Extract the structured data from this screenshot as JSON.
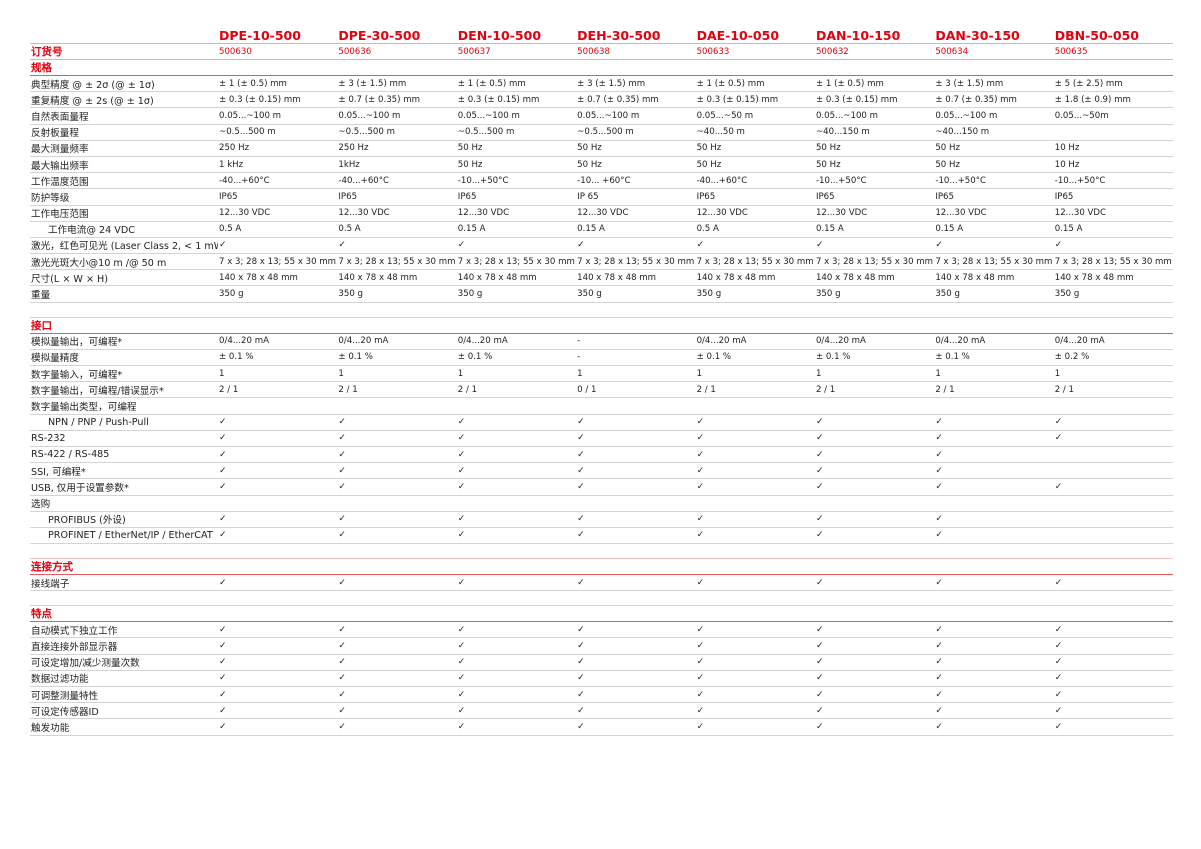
{
  "models": [
    "DPE-10-500",
    "DPE-30-500",
    "DEN-10-500",
    "DEH-30-500",
    "DAE-10-050",
    "DAN-10-150",
    "DAN-30-150",
    "DBN-50-050"
  ],
  "order": {
    "label": "订货号",
    "values": [
      "500630",
      "500636",
      "500637",
      "500638",
      "500633",
      "500632",
      "500634",
      "500635"
    ]
  },
  "accent_color": "#e3000f",
  "sections": [
    {
      "title": "规格",
      "rows": [
        {
          "label": "典型精度 @ ± 2σ (@ ± 1σ)",
          "values": [
            "± 1 (± 0.5) mm",
            "± 3 (± 1.5) mm",
            "± 1 (± 0.5) mm",
            "± 3 (± 1.5) mm",
            "± 1 (± 0.5) mm",
            "± 1 (± 0.5) mm",
            "± 3 (± 1.5) mm",
            "± 5 (± 2.5) mm"
          ]
        },
        {
          "label": "重复精度 @ ± 2s (@ ± 1σ)",
          "values": [
            "± 0.3 (± 0.15) mm",
            "± 0.7 (± 0.35) mm",
            "± 0.3 (± 0.15) mm",
            "± 0.7 (± 0.35) mm",
            "± 0.3 (± 0.15) mm",
            "± 0.3 (± 0.15) mm",
            "± 0.7 (± 0.35) mm",
            "± 1.8 (± 0.9) mm"
          ]
        },
        {
          "label": "自然表面量程",
          "values": [
            "0.05...~100 m",
            "0.05...~100 m",
            "0.05...~100 m",
            "0.05...~100 m",
            "0.05...~50 m",
            "0.05...~100 m",
            "0.05...~100 m",
            "0.05...~50m"
          ]
        },
        {
          "label": "反射板量程",
          "values": [
            " ~0.5...500 m",
            " ~0.5...500 m",
            " ~0.5...500 m",
            " ~0.5...500 m",
            "~40...50 m",
            "~40...150 m",
            "~40...150 m",
            ""
          ]
        },
        {
          "label": "最大测量频率",
          "values": [
            "250 Hz",
            "250 Hz",
            "50 Hz",
            "50 Hz",
            "50 Hz",
            "50 Hz",
            "50 Hz",
            "10 Hz"
          ]
        },
        {
          "label": "最大输出频率",
          "values": [
            "1 kHz",
            "1kHz",
            "50 Hz",
            "50 Hz",
            "50 Hz",
            "50 Hz",
            "50 Hz",
            "10 Hz"
          ]
        },
        {
          "label": "工作温度范围",
          "values": [
            "-40...+60°C",
            "-40...+60°C",
            "-10...+50°C",
            "-10... +60°C",
            "-40...+60°C",
            "-10...+50°C",
            "-10...+50°C",
            "-10...+50°C"
          ]
        },
        {
          "label": "防护等级",
          "values": [
            "IP65",
            "IP65",
            "IP65",
            "IP 65",
            "IP65",
            "IP65",
            "IP65",
            "IP65"
          ]
        },
        {
          "label": "工作电压范围",
          "values": [
            "12...30 VDC",
            "12...30 VDC",
            "12...30 VDC",
            "12...30 VDC",
            "12...30 VDC",
            "12...30 VDC",
            "12...30 VDC",
            "12...30 VDC"
          ]
        },
        {
          "label": "工作电流@ 24 VDC",
          "indent": true,
          "values": [
            "0.5 A",
            "0.5 A",
            "0.15 A",
            "0.15 A",
            "0.5 A",
            "0.15 A",
            "0.15 A",
            "0.15 A"
          ]
        },
        {
          "label": "激光，红色可见光 (Laser Class 2, < 1 mW)",
          "values": [
            "✓",
            "✓",
            "✓",
            "✓",
            "✓",
            "✓",
            "✓",
            "✓"
          ]
        },
        {
          "label": "激光光斑大小@10 m /@ 50 m",
          "values": [
            "7 x 3; 28 x 13; 55 x 30 mm",
            "7 x 3; 28 x 13; 55 x 30 mm",
            "7 x 3; 28 x 13; 55 x 30 mm",
            "7 x 3; 28 x 13; 55 x 30 mm",
            "7 x 3; 28 x 13; 55 x 30 mm",
            "7 x 3; 28 x 13; 55 x 30 mm",
            "7 x 3; 28 x 13; 55 x 30 mm",
            "7 x 3; 28 x 13; 55 x 30 mm"
          ]
        },
        {
          "label": "尺寸(L × W × H)",
          "values": [
            "140 x 78 x 48 mm",
            "140 x 78 x 48 mm",
            "140 x 78 x 48 mm",
            "140 x 78 x 48 mm",
            "140 x 78 x 48 mm",
            "140 x 78 x 48 mm",
            "140 x 78 x 48 mm",
            "140 x 78 x 48 mm"
          ]
        },
        {
          "label": "重量",
          "values": [
            "350 g",
            "350 g",
            "350 g",
            "350 g",
            "350 g",
            "350 g",
            "350 g",
            "350 g"
          ]
        }
      ]
    },
    {
      "title": "接口",
      "rows": [
        {
          "label": "模拟量输出，可编程*",
          "values": [
            "0/4...20 mA",
            "0/4...20 mA",
            "0/4...20 mA",
            "-",
            "0/4...20 mA",
            "0/4...20 mA",
            "0/4...20 mA",
            "0/4...20 mA"
          ]
        },
        {
          "label": "模拟量精度",
          "values": [
            "± 0.1 %",
            "± 0.1 %",
            "± 0.1 %",
            "-",
            "± 0.1 %",
            "± 0.1 %",
            "± 0.1 %",
            "± 0.2 %"
          ]
        },
        {
          "label": "数字量输入，可编程*",
          "values": [
            "1",
            "1",
            "1",
            "1",
            "1",
            "1",
            "1",
            "1"
          ]
        },
        {
          "label": "数字量输出，可编程/错误显示*",
          "values": [
            "2 / 1",
            "2 / 1",
            "2 / 1",
            "0 / 1",
            "2 / 1",
            "2 / 1",
            "2 / 1",
            "2 / 1"
          ]
        },
        {
          "label": "数字量输出类型，可编程",
          "values": [
            "",
            "",
            "",
            "",
            "",
            "",
            "",
            ""
          ]
        },
        {
          "label": "NPN / PNP / Push-Pull",
          "indent": true,
          "values": [
            "✓",
            "✓",
            "✓",
            "✓",
            "✓",
            "✓",
            "✓",
            "✓"
          ]
        },
        {
          "label": "RS-232",
          "values": [
            "✓",
            "✓",
            "✓",
            "✓",
            "✓",
            "✓",
            "✓",
            "✓"
          ]
        },
        {
          "label": "RS-422 / RS-485",
          "values": [
            "✓",
            "✓",
            "✓",
            "✓",
            "✓",
            "✓",
            "✓",
            ""
          ]
        },
        {
          "label": "SSI, 可编程*",
          "values": [
            "✓",
            "✓",
            "✓",
            "✓",
            "✓",
            "✓",
            "✓",
            ""
          ]
        },
        {
          "label": "USB, 仅用于设置参数*",
          "values": [
            "✓",
            "✓",
            "✓",
            "✓",
            "✓",
            "✓",
            "✓",
            "✓"
          ]
        },
        {
          "label": "选购",
          "values": [
            "",
            "",
            "",
            "",
            "",
            "",
            "",
            ""
          ]
        },
        {
          "label": "PROFIBUS (外设)",
          "indent": true,
          "values": [
            "✓",
            "✓",
            "✓",
            "✓",
            "✓",
            "✓",
            "✓",
            ""
          ]
        },
        {
          "label": "PROFINET / EtherNet/IP / EtherCAT",
          "indent": true,
          "values": [
            "✓",
            "✓",
            "✓",
            "✓",
            "✓",
            "✓",
            "✓",
            ""
          ]
        }
      ]
    },
    {
      "title": "连接方式",
      "rows": [
        {
          "label": "接线端子",
          "values": [
            "✓",
            "✓",
            "✓",
            "✓",
            "✓",
            "✓",
            "✓",
            "✓"
          ]
        }
      ]
    },
    {
      "title": "特点",
      "rows": [
        {
          "label": "自动模式下独立工作",
          "values": [
            "✓",
            "✓",
            "✓",
            "✓",
            "✓",
            "✓",
            "✓",
            "✓"
          ]
        },
        {
          "label": "直接连接外部显示器",
          "values": [
            "✓",
            "✓",
            "✓",
            "✓",
            "✓",
            "✓",
            "✓",
            "✓"
          ]
        },
        {
          "label": "可设定增加/减少测量次数",
          "values": [
            "✓",
            "✓",
            "✓",
            "✓",
            "✓",
            "✓",
            "✓",
            "✓"
          ]
        },
        {
          "label": "数据过滤功能",
          "values": [
            "✓",
            "✓",
            "✓",
            "✓",
            "✓",
            "✓",
            "✓",
            "✓"
          ]
        },
        {
          "label": "可调整测量特性",
          "values": [
            "✓",
            "✓",
            "✓",
            "✓",
            "✓",
            "✓",
            "✓",
            "✓"
          ]
        },
        {
          "label": "可设定传感器ID",
          "values": [
            "✓",
            "✓",
            "✓",
            "✓",
            "✓",
            "✓",
            "✓",
            "✓"
          ]
        },
        {
          "label": "触发功能",
          "values": [
            "✓",
            "✓",
            "✓",
            "✓",
            "✓",
            "✓",
            "✓",
            "✓"
          ]
        }
      ]
    }
  ]
}
